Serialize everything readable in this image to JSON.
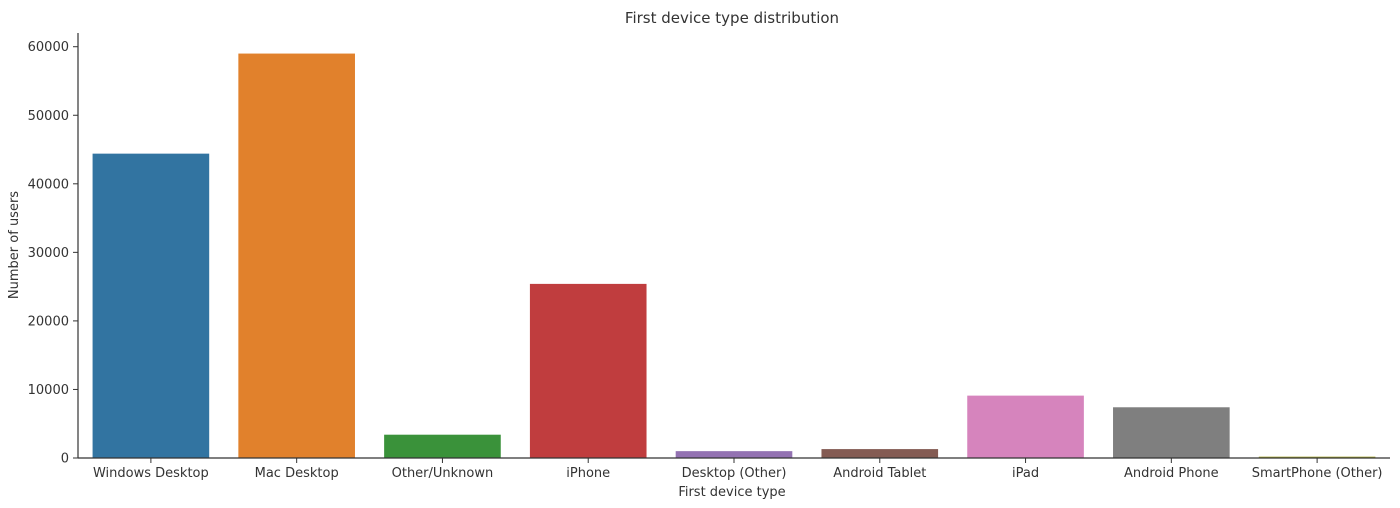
{
  "chart_data": {
    "type": "bar",
    "title": "First device type distribution",
    "xlabel": "First device type",
    "ylabel": "Number of users",
    "categories": [
      "Windows Desktop",
      "Mac Desktop",
      "Other/Unknown",
      "iPhone",
      "Desktop (Other)",
      "Android Tablet",
      "iPad",
      "Android Phone",
      "SmartPhone (Other)"
    ],
    "values": [
      44400,
      59000,
      3400,
      25400,
      1000,
      1300,
      9100,
      7400,
      200
    ],
    "colors": [
      "#3274a1",
      "#e1812c",
      "#3a923a",
      "#c03d3e",
      "#9372b2",
      "#845b53",
      "#d684bd",
      "#7f7f7f",
      "#a9aa35"
    ],
    "ylim": [
      0,
      62000
    ],
    "yticks": [
      0,
      10000,
      20000,
      30000,
      40000,
      50000,
      60000
    ],
    "grid": false,
    "legend": "none"
  }
}
